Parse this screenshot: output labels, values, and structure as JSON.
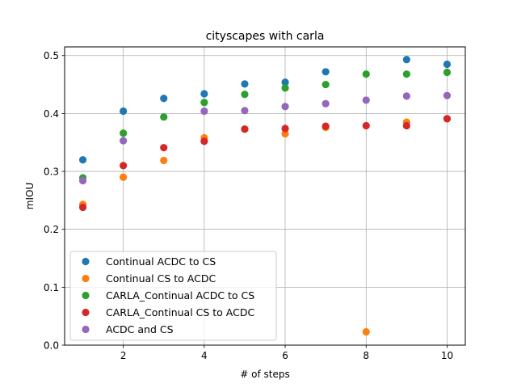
{
  "chart_data": {
    "type": "scatter",
    "title": "cityscapes with carla",
    "xlabel": "# of steps",
    "ylabel": "mIOU",
    "xlim": [
      0.55,
      10.45
    ],
    "ylim": [
      0.0,
      0.515
    ],
    "xticks": [
      2,
      4,
      6,
      8,
      10
    ],
    "yticks": [
      0.0,
      0.1,
      0.2,
      0.3,
      0.4,
      0.5
    ],
    "xtick_labels": [
      "2",
      "4",
      "6",
      "8",
      "10"
    ],
    "ytick_labels": [
      "0.0",
      "0.1",
      "0.2",
      "0.3",
      "0.4",
      "0.5"
    ],
    "grid": true,
    "legend_position": "lower-left",
    "series": [
      {
        "name": "Continual ACDC to CS",
        "color": "#1f77b4",
        "x": [
          1,
          2,
          3,
          4,
          5,
          6,
          7,
          9,
          10
        ],
        "y": [
          0.32,
          0.404,
          0.426,
          0.434,
          0.451,
          0.454,
          0.472,
          0.493,
          0.485
        ]
      },
      {
        "name": "Continual CS to ACDC",
        "color": "#ff7f0e",
        "x": [
          1,
          2,
          3,
          4,
          5,
          6,
          7,
          8,
          9,
          10
        ],
        "y": [
          0.243,
          0.29,
          0.319,
          0.358,
          0.373,
          0.365,
          0.376,
          0.023,
          0.385,
          0.391
        ]
      },
      {
        "name": "CARLA_Continual ACDC to CS",
        "color": "#2ca02c",
        "x": [
          1,
          2,
          3,
          4,
          5,
          6,
          7,
          8,
          9,
          10
        ],
        "y": [
          0.289,
          0.366,
          0.394,
          0.419,
          0.433,
          0.444,
          0.45,
          0.468,
          0.468,
          0.471
        ]
      },
      {
        "name": "CARLA_Continual CS to ACDC",
        "color": "#d62728",
        "x": [
          1,
          2,
          3,
          4,
          5,
          6,
          7,
          8,
          9,
          10
        ],
        "y": [
          0.238,
          0.31,
          0.341,
          0.352,
          0.373,
          0.374,
          0.378,
          0.379,
          0.379,
          0.391
        ]
      },
      {
        "name": "ACDC and CS",
        "color": "#9467bd",
        "x": [
          1,
          2,
          4,
          5,
          6,
          7,
          8,
          9,
          10
        ],
        "y": [
          0.284,
          0.353,
          0.404,
          0.405,
          0.412,
          0.417,
          0.423,
          0.43,
          0.431
        ]
      }
    ]
  }
}
